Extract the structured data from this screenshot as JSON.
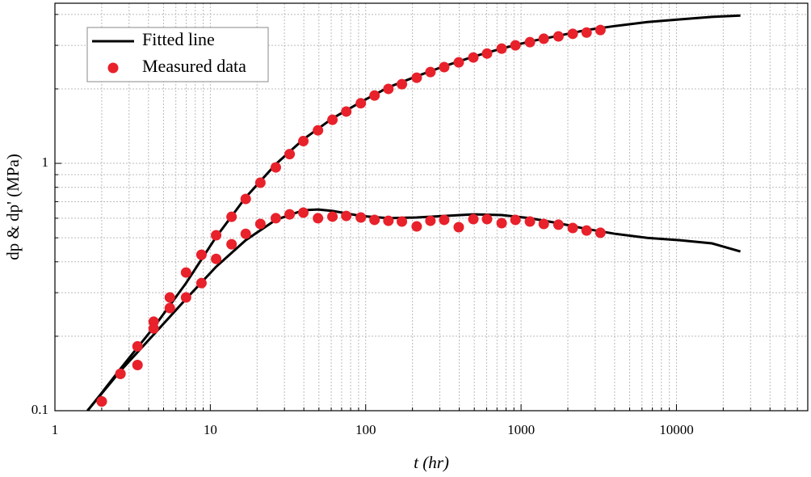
{
  "chart_data": {
    "type": "line",
    "x_label": "t (hr)",
    "y_label": "dp & dp' (MPa)",
    "xlog": true,
    "ylog": true,
    "grid": true,
    "minor_grid": true,
    "legend": "upper left",
    "xlim": [
      1,
      70000
    ],
    "ylim": [
      0.1,
      4.44
    ],
    "xticks": [
      1,
      10,
      100,
      1000,
      10000
    ],
    "yticks": [
      0.1,
      1
    ],
    "series": [
      {
        "name": "Fitted line",
        "color": "#000000",
        "style": "line",
        "x": [
          1.62,
          2.0,
          2.67,
          4.32,
          6.98,
          10.9,
          16.9,
          26.4,
          39.7,
          61.1,
          93,
          140,
          213,
          320,
          493,
          750,
          1140,
          1740,
          2640,
          4020,
          6500,
          10500,
          16900,
          25800
        ],
        "values": [
          0.1,
          0.118,
          0.149,
          0.217,
          0.328,
          0.504,
          0.729,
          0.993,
          1.25,
          1.52,
          1.77,
          2.03,
          2.25,
          2.47,
          2.7,
          2.91,
          3.11,
          3.28,
          3.46,
          3.59,
          3.73,
          3.82,
          3.91,
          3.96
        ]
      },
      {
        "color": "#000000",
        "style": "line",
        "x": [
          1.62,
          2.67,
          4.32,
          6.98,
          10.9,
          16.9,
          26.4,
          39.7,
          49.3,
          61.1,
          93,
          140,
          213,
          320,
          493,
          750,
          1140,
          1740,
          2640,
          4020,
          6500,
          10500,
          16900,
          25800
        ],
        "values": [
          0.1,
          0.146,
          0.203,
          0.283,
          0.382,
          0.489,
          0.591,
          0.646,
          0.651,
          0.642,
          0.613,
          0.6,
          0.604,
          0.613,
          0.622,
          0.618,
          0.6,
          0.573,
          0.543,
          0.519,
          0.5,
          0.489,
          0.475,
          0.44
        ]
      },
      {
        "name": "Measured data",
        "color": "#e8212b",
        "style": "marker",
        "x": [
          2.0,
          2.64,
          3.4,
          4.32,
          5.49,
          6.98,
          8.77,
          10.9,
          13.7,
          16.9,
          21.0,
          26.4,
          32.4,
          39.7,
          49.3,
          61.1,
          75.0,
          93.0,
          114,
          140,
          171,
          213,
          261,
          320,
          397,
          493,
          604,
          750,
          920,
          1140,
          1400,
          1740,
          2150,
          2640,
          3240
        ],
        "values": [
          0.109,
          0.141,
          0.182,
          0.229,
          0.287,
          0.362,
          0.427,
          0.512,
          0.608,
          0.718,
          0.835,
          0.963,
          1.09,
          1.23,
          1.36,
          1.5,
          1.62,
          1.75,
          1.88,
          2.0,
          2.09,
          2.22,
          2.34,
          2.45,
          2.56,
          2.68,
          2.78,
          2.91,
          3.0,
          3.09,
          3.19,
          3.26,
          3.34,
          3.38,
          3.46
        ]
      },
      {
        "color": "#e8212b",
        "style": "marker",
        "x": [
          2.0,
          2.64,
          3.4,
          4.32,
          5.49,
          6.98,
          8.77,
          10.9,
          13.7,
          16.9,
          21.0,
          26.4,
          32.4,
          39.7,
          49.3,
          61.1,
          75.0,
          93.0,
          114,
          140,
          171,
          213,
          261,
          320,
          397,
          493,
          604,
          750,
          920,
          1140,
          1400,
          1740,
          2150,
          2640,
          3240
        ],
        "values": [
          0.109,
          0.141,
          0.153,
          0.215,
          0.26,
          0.287,
          0.328,
          0.411,
          0.471,
          0.519,
          0.569,
          0.6,
          0.622,
          0.632,
          0.6,
          0.609,
          0.613,
          0.604,
          0.591,
          0.586,
          0.582,
          0.556,
          0.586,
          0.591,
          0.552,
          0.595,
          0.595,
          0.573,
          0.591,
          0.582,
          0.569,
          0.565,
          0.548,
          0.535,
          0.524
        ]
      }
    ]
  }
}
